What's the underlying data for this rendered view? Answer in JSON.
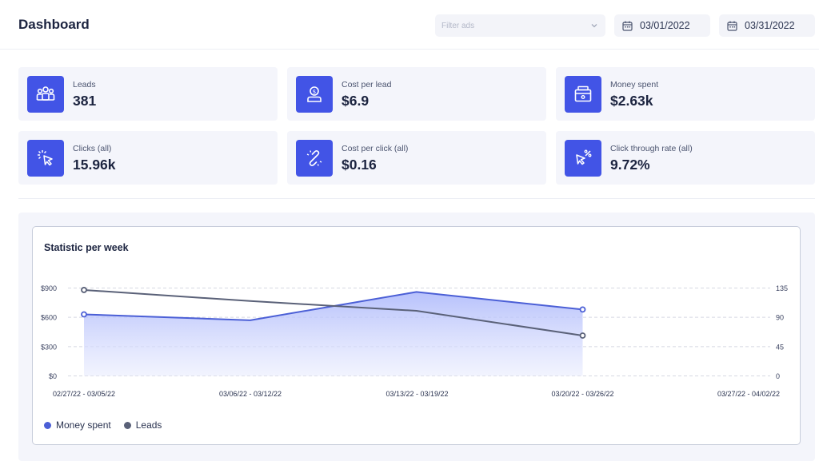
{
  "header": {
    "title": "Dashboard",
    "filter_placeholder": "Filter ads",
    "start_date": "03/01/2022",
    "end_date": "03/31/2022"
  },
  "stats": [
    {
      "label": "Leads",
      "value": "381",
      "icon": "users-icon"
    },
    {
      "label": "Cost per lead",
      "value": "$6.9",
      "icon": "dollar-user-icon"
    },
    {
      "label": "Money spent",
      "value": "$2.63k",
      "icon": "wallet-icon"
    },
    {
      "label": "Clicks (all)",
      "value": "15.96k",
      "icon": "cursor-click-icon"
    },
    {
      "label": "Cost per click (all)",
      "value": "$0.16",
      "icon": "link-icon"
    },
    {
      "label": "Click through rate (all)",
      "value": "9.72%",
      "icon": "cursor-percent-icon"
    }
  ],
  "colors": {
    "accent": "#4254e6",
    "money_line": "#4b5fd6",
    "leads_line": "#5a6178"
  },
  "chart_data": {
    "type": "line",
    "title": "Statistic per week",
    "categories": [
      "02/27/22 - 03/05/22",
      "03/06/22 - 03/12/22",
      "03/13/22 - 03/19/22",
      "03/20/22 - 03/26/22",
      "03/27/22 - 04/02/22"
    ],
    "series": [
      {
        "name": "Money spent",
        "axis": "left",
        "values": [
          630,
          570,
          860,
          680,
          null
        ],
        "fill": "area"
      },
      {
        "name": "Leads",
        "axis": "right",
        "values": [
          132,
          115,
          100,
          62,
          null
        ]
      }
    ],
    "y_left": {
      "ticks": [
        "$0",
        "$300",
        "$600",
        "$900"
      ],
      "range": [
        0,
        900
      ]
    },
    "y_right": {
      "ticks": [
        "0",
        "45",
        "90",
        "135"
      ],
      "range": [
        0,
        135
      ]
    },
    "grid": true,
    "legend": "bottom-left"
  }
}
